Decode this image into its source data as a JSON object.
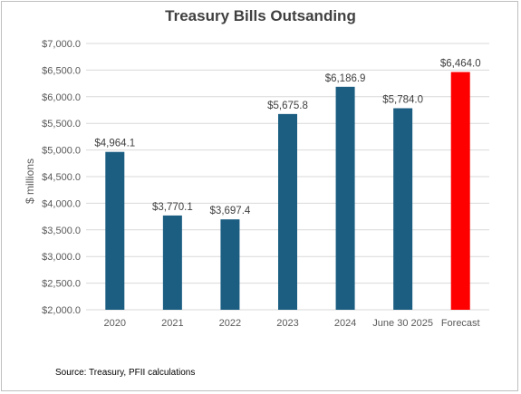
{
  "chart_data": {
    "type": "bar",
    "title": "Treasury Bills Outsanding",
    "xlabel": "",
    "ylabel": "$ millions",
    "ylim": [
      2000,
      7000
    ],
    "yticks": [
      2000,
      2500,
      3000,
      3500,
      4000,
      4500,
      5000,
      5500,
      6000,
      6500,
      7000
    ],
    "ytick_labels": [
      "$2,000.0",
      "$2,500.0",
      "$3,000.0",
      "$3,500.0",
      "$4,000.0",
      "$4,500.0",
      "$5,000.0",
      "$5,500.0",
      "$6,000.0",
      "$6,500.0",
      "$7,000.0"
    ],
    "categories": [
      "2020",
      "2021",
      "2022",
      "2023",
      "2024",
      "June 30 2025",
      "Forecast"
    ],
    "values": [
      4964.1,
      3770.1,
      3697.4,
      5675.8,
      6186.9,
      5784.0,
      6464.0
    ],
    "data_labels": [
      "$4,964.1",
      "$3,770.1",
      "$3,697.4",
      "$5,675.8",
      "$6,186.9",
      "$5,784.0",
      "$6,464.0"
    ],
    "bar_colors": [
      "#1b5e82",
      "#1b5e82",
      "#1b5e82",
      "#1b5e82",
      "#1b5e82",
      "#1b5e82",
      "#ff0000"
    ],
    "grid": true,
    "legend": "none"
  },
  "source_note": "Source: Treasury,  PFII calculations"
}
